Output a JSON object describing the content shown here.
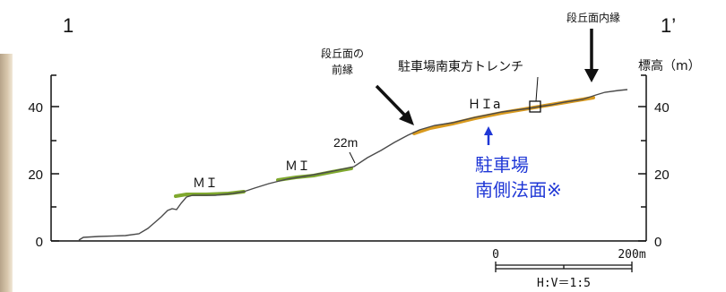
{
  "section_start_label": "1",
  "section_end_label": "1’",
  "y_axis": {
    "unit_label": "標高（m）",
    "ticks": [
      "0",
      "20",
      "40"
    ],
    "range": [
      0,
      50
    ]
  },
  "terrace_labels": [
    {
      "id": "mi-left",
      "text": "ＭＩ"
    },
    {
      "id": "mi-mid",
      "text": "ＭＩ"
    },
    {
      "id": "hia",
      "text": "ＨＩa"
    }
  ],
  "annotations": {
    "elevation_22m": "22m",
    "terrace_front_edge": [
      "段丘面の",
      "前縁"
    ],
    "terrace_inner_edge": "段丘面内縁",
    "trench": "駐車場南東方トレンチ",
    "parking_slope": [
      "駐車場",
      "南側法面※"
    ]
  },
  "scale": {
    "tick_start": "0",
    "tick_end": "200m",
    "ratio": "H:V＝1:5"
  },
  "colors": {
    "profile": "#4a4a4a",
    "terrace_mi": "#7fa82e",
    "terrace_hia": "#d99a1e",
    "annotation_blue": "#1f37d6"
  }
}
